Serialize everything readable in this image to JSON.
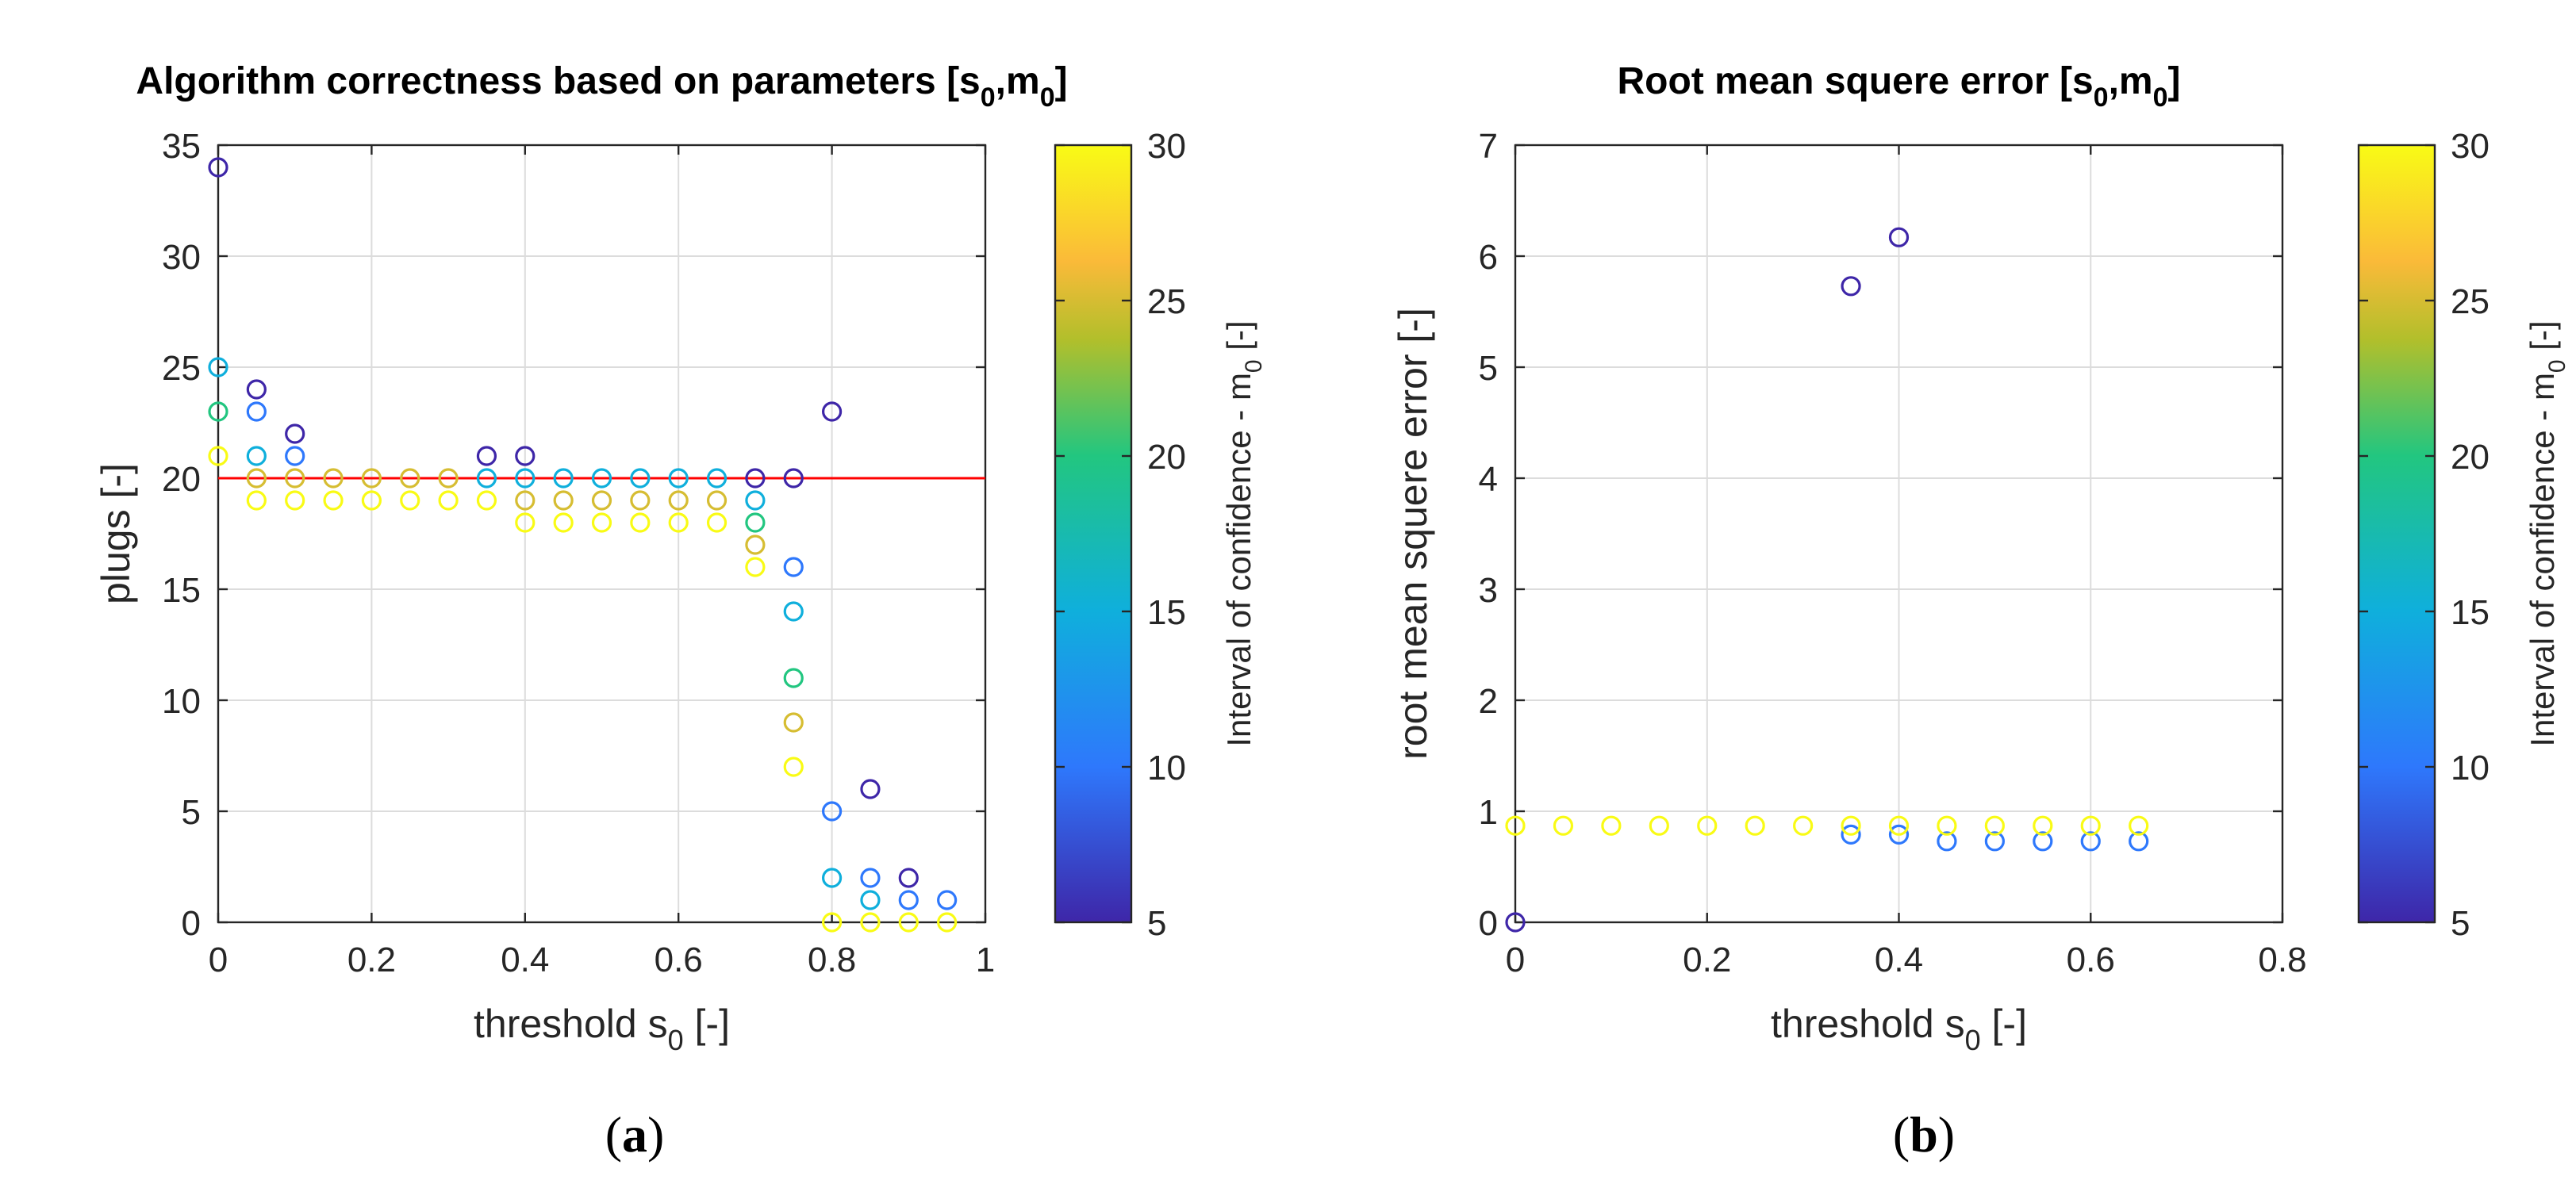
{
  "chart_data": [
    {
      "type": "scatter",
      "panel_label": "(a)",
      "title": "Algorithm correctness based on parameters [s",
      "title_sub1": "0",
      "title_mid": ",m",
      "title_sub2": "0",
      "title_end": "]",
      "xlabel": "threshold s",
      "xlabel_sub": "0",
      "xlabel_end": " [-]",
      "ylabel": "plugs [-]",
      "xlim": [
        0,
        1
      ],
      "ylim": [
        0,
        35
      ],
      "xticks": [
        0,
        0.2,
        0.4,
        0.6,
        0.8,
        1
      ],
      "xtick_labels": [
        "0",
        "0.2",
        "0.4",
        "0.6",
        "0.8",
        "1"
      ],
      "yticks": [
        0,
        5,
        10,
        15,
        20,
        25,
        30,
        35
      ],
      "ytick_labels": [
        "0",
        "5",
        "10",
        "15",
        "20",
        "25",
        "30",
        "35"
      ],
      "grid": true,
      "reference_line": {
        "y": 20,
        "color": "#ff0000"
      },
      "colorbar": {
        "label": "Interval of confidence - m",
        "label_sub": "0",
        "label_end": " [-]",
        "range": [
          5,
          30
        ],
        "ticks": [
          5,
          10,
          15,
          20,
          25,
          30
        ],
        "tick_labels": [
          "5",
          "10",
          "15",
          "20",
          "25",
          "30"
        ],
        "colormap": "parula"
      },
      "series": [
        {
          "name": "m0=5",
          "m0": 5,
          "points": [
            [
              0,
              34
            ],
            [
              0.05,
              24
            ],
            [
              0.1,
              22
            ],
            [
              0.35,
              21
            ],
            [
              0.4,
              21
            ],
            [
              0.7,
              20
            ],
            [
              0.75,
              20
            ],
            [
              0.8,
              23
            ],
            [
              0.85,
              6
            ],
            [
              0.9,
              2
            ]
          ]
        },
        {
          "name": "m0=10",
          "m0": 10,
          "points": [
            [
              0.05,
              23
            ],
            [
              0.1,
              21
            ],
            [
              0.75,
              16
            ],
            [
              0.8,
              5
            ],
            [
              0.85,
              2
            ],
            [
              0.9,
              1
            ],
            [
              0.95,
              1
            ]
          ]
        },
        {
          "name": "m0=15",
          "m0": 15,
          "points": [
            [
              0,
              25
            ],
            [
              0.05,
              21
            ],
            [
              0.35,
              20
            ],
            [
              0.4,
              20
            ],
            [
              0.45,
              20
            ],
            [
              0.5,
              20
            ],
            [
              0.55,
              20
            ],
            [
              0.6,
              20
            ],
            [
              0.65,
              20
            ],
            [
              0.7,
              19
            ],
            [
              0.75,
              14
            ],
            [
              0.8,
              2
            ],
            [
              0.85,
              1
            ]
          ]
        },
        {
          "name": "m0=20",
          "m0": 20,
          "points": [
            [
              0,
              23
            ],
            [
              0.7,
              18
            ],
            [
              0.75,
              11
            ]
          ]
        },
        {
          "name": "m0=25",
          "m0": 25,
          "points": [
            [
              0.05,
              20
            ],
            [
              0.1,
              20
            ],
            [
              0.15,
              20
            ],
            [
              0.2,
              20
            ],
            [
              0.25,
              20
            ],
            [
              0.3,
              20
            ],
            [
              0.4,
              19
            ],
            [
              0.45,
              19
            ],
            [
              0.5,
              19
            ],
            [
              0.55,
              19
            ],
            [
              0.6,
              19
            ],
            [
              0.65,
              19
            ],
            [
              0.7,
              17
            ],
            [
              0.75,
              9
            ]
          ]
        },
        {
          "name": "m0=30",
          "m0": 30,
          "points": [
            [
              0,
              21
            ],
            [
              0.05,
              19
            ],
            [
              0.1,
              19
            ],
            [
              0.15,
              19
            ],
            [
              0.2,
              19
            ],
            [
              0.25,
              19
            ],
            [
              0.3,
              19
            ],
            [
              0.35,
              19
            ],
            [
              0.4,
              18
            ],
            [
              0.45,
              18
            ],
            [
              0.5,
              18
            ],
            [
              0.55,
              18
            ],
            [
              0.6,
              18
            ],
            [
              0.65,
              18
            ],
            [
              0.7,
              16
            ],
            [
              0.75,
              7
            ],
            [
              0.8,
              0
            ],
            [
              0.85,
              0
            ],
            [
              0.9,
              0
            ],
            [
              0.95,
              0
            ]
          ]
        }
      ]
    },
    {
      "type": "scatter",
      "panel_label": "(b)",
      "title": "Root mean squere error [s",
      "title_sub1": "0",
      "title_mid": ",m",
      "title_sub2": "0",
      "title_end": "]",
      "xlabel": "threshold s",
      "xlabel_sub": "0",
      "xlabel_end": " [-]",
      "ylabel": "root mean squere error [-]",
      "xlim": [
        0,
        0.8
      ],
      "ylim": [
        0,
        7
      ],
      "xticks": [
        0,
        0.2,
        0.4,
        0.6,
        0.8
      ],
      "xtick_labels": [
        "0",
        "0.2",
        "0.4",
        "0.6",
        "0.8"
      ],
      "yticks": [
        0,
        1,
        2,
        3,
        4,
        5,
        6,
        7
      ],
      "ytick_labels": [
        "0",
        "1",
        "2",
        "3",
        "4",
        "5",
        "6",
        "7"
      ],
      "grid": true,
      "colorbar": {
        "label": "Interval of confidence - m",
        "label_sub": "0",
        "label_end": " [-]",
        "range": [
          5,
          30
        ],
        "ticks": [
          5,
          10,
          15,
          20,
          25,
          30
        ],
        "tick_labels": [
          "5",
          "10",
          "15",
          "20",
          "25",
          "30"
        ],
        "colormap": "parula"
      },
      "series": [
        {
          "name": "m0=5",
          "m0": 5,
          "points": [
            [
              0,
              0
            ],
            [
              0.35,
              5.73
            ],
            [
              0.4,
              6.17
            ]
          ]
        },
        {
          "name": "m0=10",
          "m0": 10,
          "points": [
            [
              0.35,
              0.79
            ],
            [
              0.4,
              0.79
            ],
            [
              0.45,
              0.73
            ],
            [
              0.5,
              0.73
            ],
            [
              0.55,
              0.73
            ],
            [
              0.6,
              0.73
            ],
            [
              0.65,
              0.73
            ]
          ]
        },
        {
          "name": "m0=30",
          "m0": 30,
          "points": [
            [
              0,
              0.87
            ],
            [
              0.05,
              0.87
            ],
            [
              0.1,
              0.87
            ],
            [
              0.15,
              0.87
            ],
            [
              0.2,
              0.87
            ],
            [
              0.25,
              0.87
            ],
            [
              0.3,
              0.87
            ],
            [
              0.35,
              0.87
            ],
            [
              0.4,
              0.87
            ],
            [
              0.45,
              0.87
            ],
            [
              0.5,
              0.87
            ],
            [
              0.55,
              0.87
            ],
            [
              0.6,
              0.87
            ],
            [
              0.65,
              0.87
            ]
          ]
        }
      ]
    }
  ]
}
